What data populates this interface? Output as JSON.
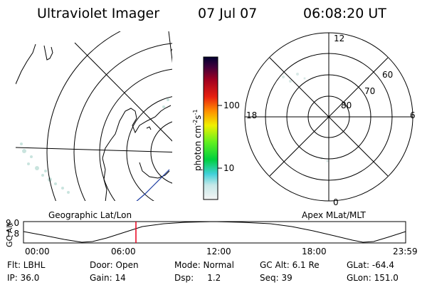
{
  "header": {
    "instrument": "Ultraviolet Imager",
    "date": "07 Jul 07",
    "time": "06:08:20 UT"
  },
  "colorbar": {
    "ticks": [
      "100",
      "10"
    ],
    "unit": "photon cm",
    "unit_exp1": "-2",
    "unit_mid": "s",
    "unit_exp2": "-1"
  },
  "polar_plot": {
    "mlt_labels": [
      "12",
      "18",
      "6",
      "0"
    ],
    "lat_labels": [
      "60",
      "70",
      "80"
    ]
  },
  "map_labels": {
    "left": "Geographic Lat/Lon",
    "right": "Apex MLat/MLT"
  },
  "altitude_plot": {
    "ylabel": "GC Alt",
    "ytick_top": "9.0",
    "ytick_bottom": "1.8",
    "xticks": [
      "00:00",
      "06:00",
      "12:00",
      "18:00",
      "23:59"
    ],
    "marker_time": "06:08"
  },
  "footer": {
    "row1": [
      "Flt: LBHL",
      "Door: Open",
      "Mode: Normal",
      "GC Alt: 6.1 Re",
      "GLat: -64.4"
    ],
    "row2": [
      "IP: 36.0",
      "Gain: 14",
      "Dsp:     1.2",
      "Seq: 39",
      "GLon: 151.0"
    ]
  },
  "colors": {
    "marker": "#e8001c",
    "coast_highlight": "#1a3aa0"
  }
}
